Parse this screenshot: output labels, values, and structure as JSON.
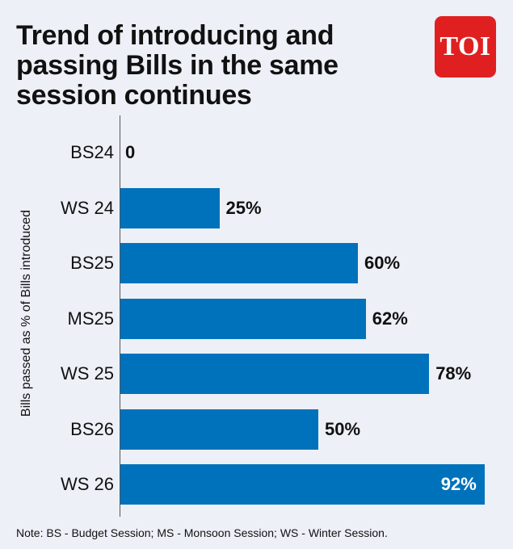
{
  "header": {
    "title": "Trend of introducing and passing Bills in the same session continues",
    "logo_text": "TOI",
    "logo_color": "#e02020"
  },
  "chart_data": {
    "type": "bar",
    "orientation": "horizontal",
    "ylabel": "Bills passed as % of Bills introduced",
    "categories": [
      "BS24",
      "WS 24",
      "BS25",
      "MS25",
      "WS 25",
      "BS26",
      "WS 26"
    ],
    "values": [
      0,
      25,
      60,
      62,
      78,
      50,
      92
    ],
    "value_labels": [
      "0",
      "25%",
      "60%",
      "62%",
      "78%",
      "50%",
      "92%"
    ],
    "xlim": [
      0,
      100
    ],
    "bar_color": "#0072bb",
    "grid": false
  },
  "footer": {
    "note": "Note: BS - Budget Session; MS - Monsoon Session; WS - Winter Session."
  }
}
